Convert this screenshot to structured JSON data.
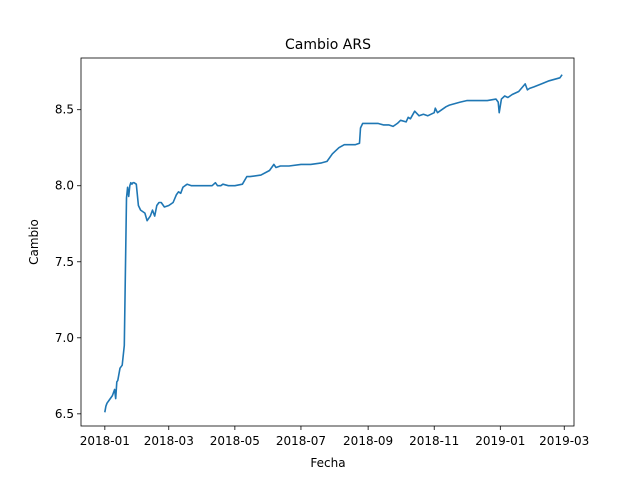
{
  "chart_data": {
    "type": "line",
    "title": "Cambio ARS",
    "xlabel": "Fecha",
    "ylabel": "Cambio",
    "xlim": [
      "2017-12-10",
      "2019-03-10"
    ],
    "ylim": [
      6.42,
      8.84
    ],
    "x_ticks": [
      "2018-01",
      "2018-03",
      "2018-05",
      "2018-07",
      "2018-09",
      "2018-11",
      "2019-01",
      "2019-03"
    ],
    "y_ticks": [
      "6.5",
      "7.0",
      "7.5",
      "8.0",
      "8.5"
    ],
    "y_tick_values": [
      6.5,
      7.0,
      7.5,
      8.0,
      8.5
    ],
    "grid": false,
    "series": [
      {
        "color": "#1f77b4",
        "x": [
          "2018-01-01",
          "2018-01-02",
          "2018-01-03",
          "2018-01-05",
          "2018-01-08",
          "2018-01-10",
          "2018-01-11",
          "2018-01-12",
          "2018-01-13",
          "2018-01-15",
          "2018-01-17",
          "2018-01-19",
          "2018-01-21",
          "2018-01-22",
          "2018-01-23",
          "2018-01-24",
          "2018-01-25",
          "2018-01-26",
          "2018-01-27",
          "2018-01-28",
          "2018-01-30",
          "2018-02-01",
          "2018-02-03",
          "2018-02-05",
          "2018-02-07",
          "2018-02-09",
          "2018-02-12",
          "2018-02-14",
          "2018-02-16",
          "2018-02-18",
          "2018-02-20",
          "2018-02-22",
          "2018-02-25",
          "2018-03-01",
          "2018-03-05",
          "2018-03-08",
          "2018-03-10",
          "2018-03-12",
          "2018-03-14",
          "2018-03-16",
          "2018-03-18",
          "2018-03-22",
          "2018-03-26",
          "2018-04-01",
          "2018-04-10",
          "2018-04-13",
          "2018-04-15",
          "2018-04-18",
          "2018-04-20",
          "2018-04-25",
          "2018-05-01",
          "2018-05-08",
          "2018-05-12",
          "2018-05-15",
          "2018-05-25",
          "2018-06-02",
          "2018-06-06",
          "2018-06-08",
          "2018-06-12",
          "2018-06-20",
          "2018-07-01",
          "2018-07-10",
          "2018-07-20",
          "2018-07-25",
          "2018-07-30",
          "2018-08-05",
          "2018-08-10",
          "2018-08-20",
          "2018-08-24",
          "2018-08-25",
          "2018-08-27",
          "2018-09-03",
          "2018-09-10",
          "2018-09-15",
          "2018-09-20",
          "2018-09-24",
          "2018-09-28",
          "2018-10-01",
          "2018-10-06",
          "2018-10-08",
          "2018-10-10",
          "2018-10-14",
          "2018-10-18",
          "2018-10-22",
          "2018-10-26",
          "2018-11-01",
          "2018-11-02",
          "2018-11-04",
          "2018-11-08",
          "2018-11-12",
          "2018-11-15",
          "2018-11-20",
          "2018-11-25",
          "2018-12-01",
          "2018-12-10",
          "2018-12-20",
          "2018-12-28",
          "2018-12-30",
          "2018-12-31",
          "2019-01-02",
          "2019-01-05",
          "2019-01-08",
          "2019-01-12",
          "2019-01-18",
          "2019-01-24",
          "2019-01-26",
          "2019-01-28",
          "2019-02-01",
          "2019-02-08",
          "2019-02-15",
          "2019-02-20",
          "2019-02-25",
          "2019-02-27"
        ],
        "y": [
          6.51,
          6.55,
          6.57,
          6.59,
          6.62,
          6.66,
          6.6,
          6.71,
          6.72,
          6.8,
          6.82,
          6.95,
          7.92,
          7.99,
          7.93,
          8.0,
          8.02,
          8.01,
          8.02,
          8.02,
          8.01,
          7.87,
          7.84,
          7.83,
          7.82,
          7.77,
          7.8,
          7.84,
          7.8,
          7.87,
          7.89,
          7.89,
          7.86,
          7.87,
          7.89,
          7.94,
          7.96,
          7.95,
          7.99,
          8.0,
          8.01,
          8.0,
          8.0,
          8.0,
          8.0,
          8.02,
          8.0,
          8.0,
          8.01,
          8.0,
          8.0,
          8.01,
          8.06,
          8.06,
          8.07,
          8.1,
          8.14,
          8.12,
          8.13,
          8.13,
          8.14,
          8.14,
          8.15,
          8.16,
          8.21,
          8.25,
          8.27,
          8.27,
          8.28,
          8.38,
          8.41,
          8.41,
          8.41,
          8.4,
          8.4,
          8.39,
          8.41,
          8.43,
          8.42,
          8.45,
          8.44,
          8.49,
          8.46,
          8.47,
          8.46,
          8.48,
          8.51,
          8.48,
          8.5,
          8.52,
          8.53,
          8.54,
          8.55,
          8.56,
          8.56,
          8.56,
          8.57,
          8.55,
          8.48,
          8.57,
          8.59,
          8.58,
          8.6,
          8.62,
          8.67,
          8.63,
          8.64,
          8.65,
          8.67,
          8.69,
          8.7,
          8.71,
          8.73
        ]
      }
    ]
  }
}
